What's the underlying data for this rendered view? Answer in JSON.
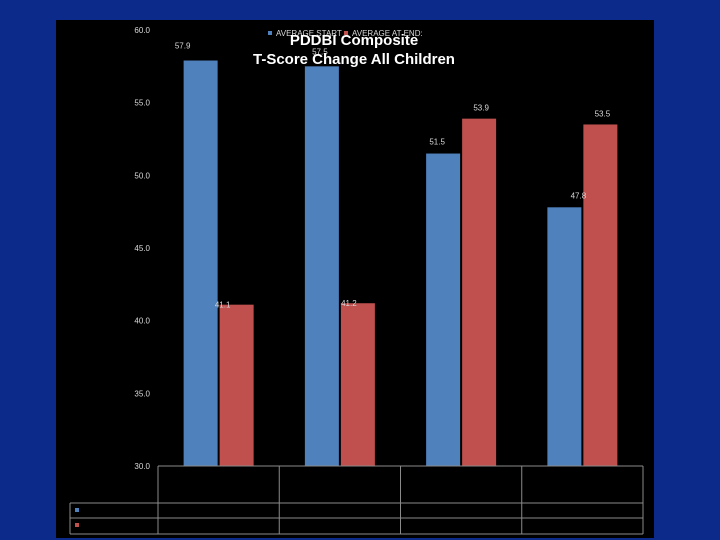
{
  "colors": {
    "frame": "#0b2a8a",
    "panel": "#000000",
    "series_start": "#4f81bd",
    "series_end": "#c0504d",
    "text": "#d9d9d9",
    "title": "#ffffff"
  },
  "chart_data": {
    "type": "bar",
    "title": "PDDBI Composite",
    "subtitle": "T-Score Change All Children",
    "categories": [
      "",
      "",
      "",
      ""
    ],
    "series": [
      {
        "name": "AVERAGE START",
        "values": [
          57.9,
          57.5,
          51.5,
          47.8
        ]
      },
      {
        "name": "AVERAGE AT END:",
        "values": [
          41.1,
          41.2,
          53.9,
          53.5
        ]
      }
    ],
    "data_labels": [
      [
        "57.9",
        "57.5",
        "51.5",
        "47.8"
      ],
      [
        "41.1",
        "41.2",
        "53.9",
        "53.5"
      ]
    ],
    "y_ticks": [
      "30.0",
      "35.0",
      "40.0",
      "45.0",
      "50.0",
      "55.0",
      "60.0"
    ],
    "ylim": [
      30,
      60
    ],
    "xlabel": "",
    "ylabel": "",
    "grid": false,
    "legend": "top"
  }
}
